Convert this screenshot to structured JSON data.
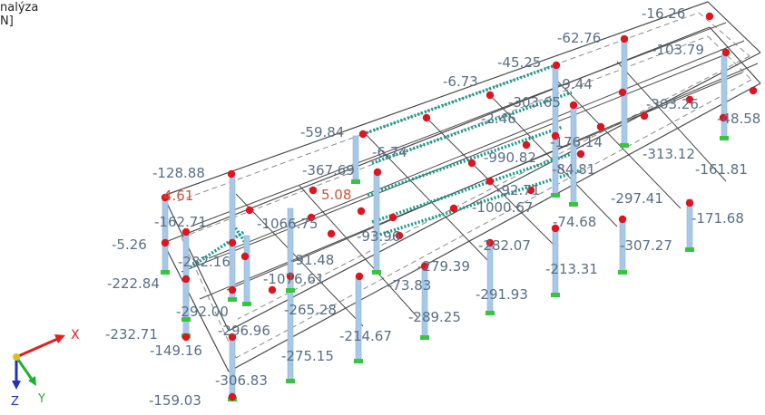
{
  "header": {
    "line1": "nalýza",
    "line2": "N]"
  },
  "colors": {
    "frame": "#4a4a4a",
    "dashed": "#8a8a8a",
    "column": "#a8c8e8",
    "node": "#e0141e",
    "support": "#39c43f",
    "label": "#5a6e85",
    "label_red": "#d0503c",
    "beam_hatch": "#1a9a8a"
  },
  "axes": {
    "x": "X",
    "y": "Y",
    "z": "Z"
  },
  "labels": [
    {
      "text": "-16.26",
      "color": "label"
    },
    {
      "text": "-62.76",
      "color": "label"
    },
    {
      "text": "-103.79",
      "color": "label"
    },
    {
      "text": "-45.25",
      "color": "label"
    },
    {
      "text": "-6.73",
      "color": "label"
    },
    {
      "text": "-9.44",
      "color": "label"
    },
    {
      "text": "-303.65",
      "color": "label"
    },
    {
      "text": "-303.26",
      "color": "label"
    },
    {
      "text": "-48.58",
      "color": "label"
    },
    {
      "text": "-2.46",
      "color": "label"
    },
    {
      "text": "-59.84",
      "color": "label"
    },
    {
      "text": "-176.14",
      "color": "label"
    },
    {
      "text": "-6.74",
      "color": "label"
    },
    {
      "text": "-313.12",
      "color": "label"
    },
    {
      "text": "-367.69",
      "color": "label"
    },
    {
      "text": "-990.82",
      "color": "label"
    },
    {
      "text": "-161.81",
      "color": "label"
    },
    {
      "text": "-84.81",
      "color": "label"
    },
    {
      "text": "-128.88",
      "color": "label"
    },
    {
      "text": "4.61",
      "color": "label_red"
    },
    {
      "text": "5.08",
      "color": "label_red"
    },
    {
      "text": "-92.71",
      "color": "label"
    },
    {
      "text": "-297.41",
      "color": "label"
    },
    {
      "text": "-1000.67",
      "color": "label"
    },
    {
      "text": "-162.71",
      "color": "label"
    },
    {
      "text": "-1066.75",
      "color": "label"
    },
    {
      "text": "-74.68",
      "color": "label"
    },
    {
      "text": "-171.68",
      "color": "label"
    },
    {
      "text": "-5.26",
      "color": "label"
    },
    {
      "text": "-93.96",
      "color": "label"
    },
    {
      "text": "-282.07",
      "color": "label"
    },
    {
      "text": "-307.27",
      "color": "label"
    },
    {
      "text": "-282.16",
      "color": "label"
    },
    {
      "text": "-91.48",
      "color": "label"
    },
    {
      "text": "-279.39",
      "color": "label"
    },
    {
      "text": "-213.31",
      "color": "label"
    },
    {
      "text": "-222.84",
      "color": "label"
    },
    {
      "text": "-1076.61",
      "color": "label"
    },
    {
      "text": "-73.83",
      "color": "label"
    },
    {
      "text": "-291.93",
      "color": "label"
    },
    {
      "text": "-292.00",
      "color": "label"
    },
    {
      "text": "-265.28",
      "color": "label"
    },
    {
      "text": "-289.25",
      "color": "label"
    },
    {
      "text": "-232.71",
      "color": "label"
    },
    {
      "text": "-296.96",
      "color": "label"
    },
    {
      "text": "-214.67",
      "color": "label"
    },
    {
      "text": "-149.16",
      "color": "label"
    },
    {
      "text": "-275.15",
      "color": "label"
    },
    {
      "text": "-306.83",
      "color": "label"
    },
    {
      "text": "-159.03",
      "color": "label"
    }
  ]
}
